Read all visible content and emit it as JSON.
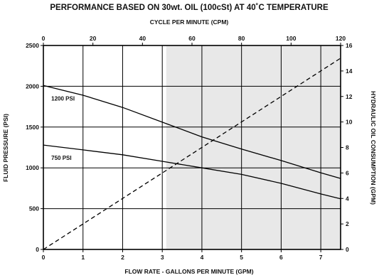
{
  "chart_data": {
    "type": "line",
    "title": "PERFORMANCE BASED ON 30wt. OIL (100cSt) AT 40˚C TEMPERATURE",
    "x_bottom": {
      "label": "FLOW RATE - GALLONS PER MINUTE (GPM)",
      "range": [
        0,
        7.5
      ],
      "ticks": [
        0,
        1,
        2,
        3,
        4,
        5,
        6,
        7
      ]
    },
    "x_top": {
      "label": "CYCLE PER MINUTE (CPM)",
      "range": [
        0,
        120
      ],
      "ticks": [
        0,
        20,
        40,
        60,
        80,
        100,
        120
      ]
    },
    "y_left": {
      "label": "FLUID PRESSURE  (PSI)",
      "range": [
        0,
        2500
      ],
      "ticks": [
        0,
        500,
        1000,
        1500,
        2000,
        2500
      ]
    },
    "y_right": {
      "label": "HYDRAULIC OIL CONSUMPTION (GPM)",
      "range": [
        0,
        16
      ],
      "ticks": [
        0,
        2,
        4,
        6,
        8,
        10,
        12,
        14,
        16
      ]
    },
    "grid": true,
    "shaded_region": {
      "x_from": 3.1,
      "x_to": 7.5,
      "color": "#e8e8e8"
    },
    "series": [
      {
        "name": "1200 PSI",
        "axis": "left",
        "style": "solid",
        "x": [
          0,
          1,
          2,
          3,
          4,
          5,
          6,
          7,
          7.5
        ],
        "y": [
          2010,
          1890,
          1740,
          1560,
          1380,
          1230,
          1090,
          940,
          870
        ]
      },
      {
        "name": "750 PSI",
        "axis": "left",
        "style": "solid",
        "x": [
          0,
          1,
          2,
          3,
          4,
          5,
          6,
          7,
          7.5
        ],
        "y": [
          1280,
          1220,
          1160,
          1080,
          1000,
          920,
          810,
          680,
          620
        ]
      },
      {
        "name": "",
        "axis": "right",
        "style": "dashed",
        "x": [
          0,
          7.5
        ],
        "y": [
          0,
          15
        ]
      }
    ],
    "colors": {
      "line": "#000000",
      "grid": "#000000",
      "shade": "#e8e8e8"
    }
  }
}
